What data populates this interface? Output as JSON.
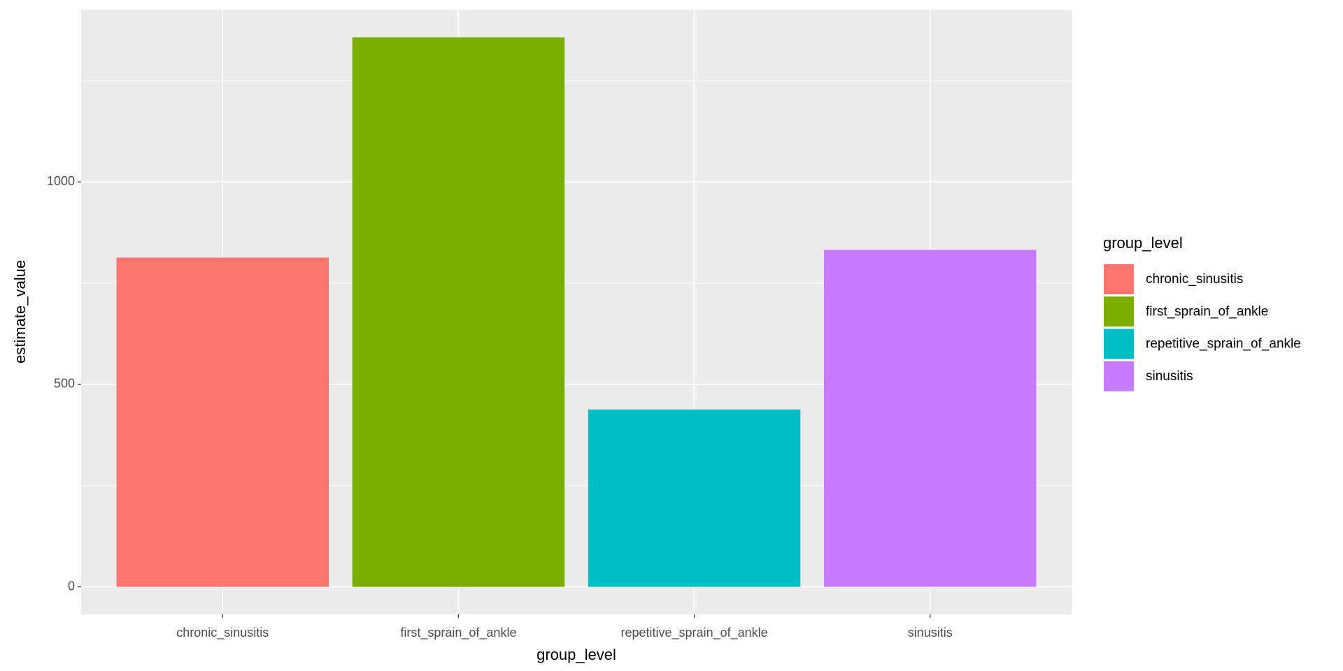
{
  "chart_data": {
    "type": "bar",
    "x_label": "group_level",
    "y_label": "estimate_value",
    "legend_title": "group_level",
    "categories": [
      "chronic_sinusitis",
      "first_sprain_of_ankle",
      "repetitive_sprain_of_ankle",
      "sinusitis"
    ],
    "values": [
      813,
      1357,
      438,
      832
    ],
    "colors": [
      "#f8766d",
      "#7cae00",
      "#00bfc4",
      "#c77cff"
    ],
    "ylim": [
      -68,
      1425
    ],
    "yticks": [
      0,
      500,
      1000
    ],
    "y_minor_gridlines": [
      250,
      750,
      1250
    ],
    "grid": true,
    "legend_position": "right"
  }
}
